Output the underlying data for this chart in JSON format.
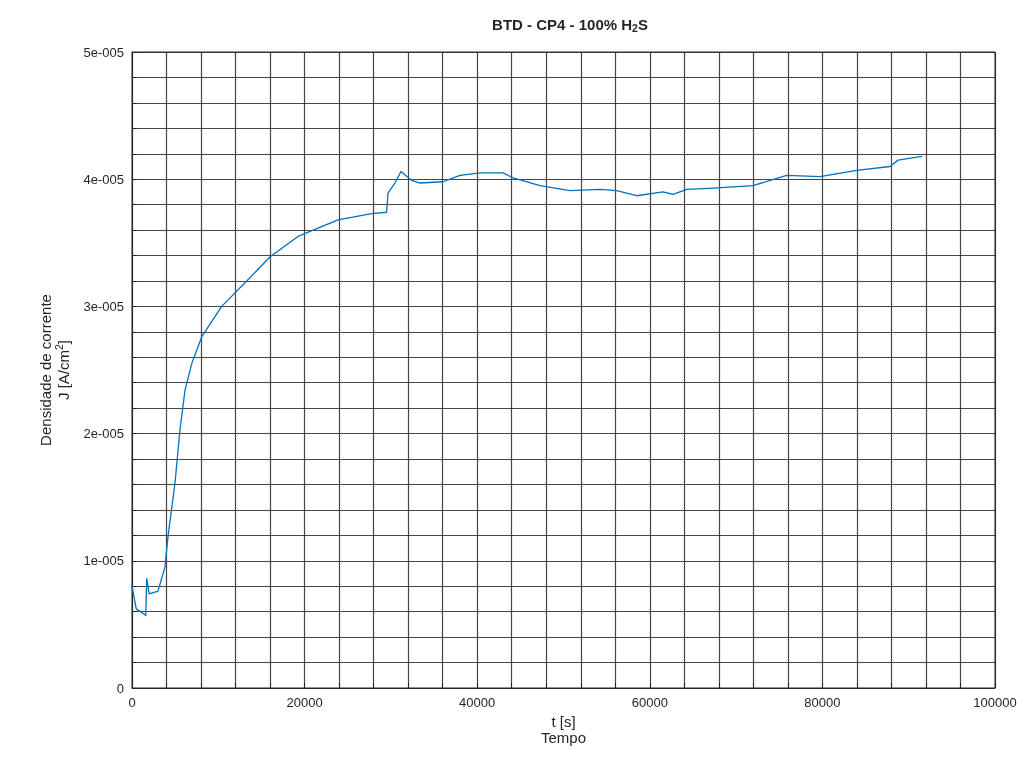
{
  "chart_data": {
    "type": "line",
    "title": "BTD - CP4 - 100% H$_{2}$S",
    "xlabel": "t [s]\nTempo",
    "ylabel": "Densidade de corrente\nJ [A/cm$^{2}$]",
    "series": [
      {
        "color": "#0072bd",
        "x": [
          0,
          500,
          1000,
          1600,
          1700,
          2000,
          2430,
          3000,
          3820,
          4170,
          4980,
          5560,
          6140,
          6920,
          8070,
          10390,
          13440,
          16000,
          19240,
          23870,
          27770,
          29510,
          29660,
          30470,
          31170,
          32410,
          33370,
          36040,
          38000,
          40320,
          43000,
          44150,
          47280,
          50750,
          54230,
          56160,
          58480,
          61530,
          62690,
          64280,
          67320,
          71960,
          75860,
          79720,
          83970,
          87830,
          88760,
          91500
        ],
        "values": [
          8e-06,
          6.2e-06,
          6e-06,
          5.7e-06,
          8.6e-06,
          7.4e-06,
          7.5e-06,
          7.6e-06,
          9.5e-06,
          1.19e-05,
          1.61e-05,
          2.03e-05,
          2.34e-05,
          2.55e-05,
          2.76e-05,
          3e-05,
          3.21e-05,
          3.39e-05,
          3.55e-05,
          3.68e-05,
          3.73e-05,
          3.74e-05,
          3.89e-05,
          3.97e-05,
          4.06e-05,
          3.99e-05,
          3.97e-05,
          3.98e-05,
          4.03e-05,
          4.05e-05,
          4.05e-05,
          4.01e-05,
          3.95e-05,
          3.91e-05,
          3.92e-05,
          3.91e-05,
          3.87e-05,
          3.9e-05,
          3.88e-05,
          3.92e-05,
          3.93e-05,
          3.95e-05,
          4.03e-05,
          4.02e-05,
          4.07e-05,
          4.1e-05,
          4.15e-05,
          4.18e-05
        ]
      }
    ],
    "xlim": [
      0,
      100000
    ],
    "xticks": [
      0,
      {
        "value": 4000,
        "label": null
      },
      {
        "value": 8000,
        "label": null
      },
      {
        "value": 12000,
        "label": null
      },
      {
        "value": 16000,
        "label": null
      },
      20000,
      {
        "value": 24000,
        "label": null
      },
      {
        "value": 28000,
        "label": null
      },
      {
        "value": 32000,
        "label": null
      },
      {
        "value": 36000,
        "label": null
      },
      40000,
      {
        "value": 44000,
        "label": null
      },
      {
        "value": 48000,
        "label": null
      },
      {
        "value": 52000,
        "label": null
      },
      {
        "value": 56000,
        "label": null
      },
      60000,
      {
        "value": 64000,
        "label": null
      },
      {
        "value": 68000,
        "label": null
      },
      {
        "value": 72000,
        "label": null
      },
      {
        "value": 76000,
        "label": null
      },
      80000,
      {
        "value": 84000,
        "label": null
      },
      {
        "value": 88000,
        "label": null
      },
      {
        "value": 92000,
        "label": null
      },
      {
        "value": 96000,
        "label": null
      },
      100000
    ],
    "ylim": [
      0,
      5e-05
    ],
    "yticks": [
      0,
      {
        "value": 2e-06,
        "label": null
      },
      {
        "value": 4e-06,
        "label": null
      },
      {
        "value": 6e-06,
        "label": null
      },
      {
        "value": 8e-06,
        "label": null
      },
      {
        "value": 1e-05,
        "label": "1e-005"
      },
      {
        "value": 1.2e-05,
        "label": null
      },
      {
        "value": 1.4e-05,
        "label": null
      },
      {
        "value": 1.6e-05,
        "label": null
      },
      {
        "value": 1.8e-05,
        "label": null
      },
      {
        "value": 2e-05,
        "label": "2e-005"
      },
      {
        "value": 2.2e-05,
        "label": null
      },
      {
        "value": 2.4e-05,
        "label": null
      },
      {
        "value": 2.6e-05,
        "label": null
      },
      {
        "value": 2.8e-05,
        "label": null
      },
      {
        "value": 3e-05,
        "label": "3e-005"
      },
      {
        "value": 3.2e-05,
        "label": null
      },
      {
        "value": 3.4e-05,
        "label": null
      },
      {
        "value": 3.6e-05,
        "label": null
      },
      {
        "value": 3.8e-05,
        "label": null
      },
      {
        "value": 4e-05,
        "label": "4e-005"
      },
      {
        "value": 4.2e-05,
        "label": null
      },
      {
        "value": 4.4e-05,
        "label": null
      },
      {
        "value": 4.6e-05,
        "label": null
      },
      {
        "value": 4.8e-05,
        "label": null
      },
      {
        "value": 5e-05,
        "label": "5e-005"
      }
    ],
    "grid": true,
    "marker": "none",
    "line_style": "solid"
  }
}
